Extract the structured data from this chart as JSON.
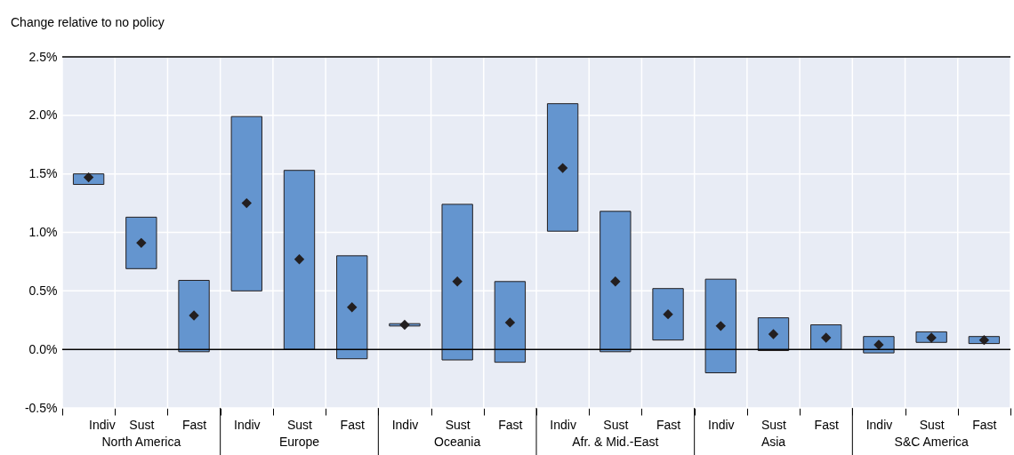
{
  "chart_data": {
    "type": "bar",
    "subtitle": "Change relative to no policy",
    "categories": [
      "Indiv",
      "Sust",
      "Fast",
      "Indiv",
      "Sust",
      "Fast",
      "Indiv",
      "Sust",
      "Fast",
      "Indiv",
      "Sust",
      "Fast",
      "Indiv",
      "Sust",
      "Fast",
      "Indiv",
      "Sust",
      "Fast"
    ],
    "annotations": [
      "North America",
      "Europe",
      "Oceania",
      "Afr. & Mid.-East",
      "Asia",
      "S&C America"
    ],
    "series": [
      {
        "color": "#6495cf",
        "base": [
          1.41,
          0.69,
          -0.02,
          0.5,
          0.0,
          -0.08,
          0.2,
          -0.09,
          -0.11,
          1.01,
          -0.02,
          0.08,
          -0.2,
          -0.01,
          0.0,
          -0.03,
          0.06,
          0.05
        ],
        "values": [
          0.09,
          0.44,
          0.61,
          1.49,
          1.53,
          0.88,
          0.02,
          1.33,
          0.69,
          1.09,
          1.2,
          0.44,
          0.8,
          0.28,
          0.21,
          0.14,
          0.09,
          0.06
        ]
      },
      {
        "type": "scatter",
        "color": "#231f20",
        "marker": "diamond",
        "values": [
          1.47,
          0.91,
          0.29,
          1.25,
          0.77,
          0.36,
          0.21,
          0.58,
          0.23,
          1.55,
          0.58,
          0.3,
          0.2,
          0.13,
          0.1,
          0.04,
          0.1,
          0.08
        ]
      }
    ],
    "ylim": [
      -0.5,
      2.5
    ],
    "yticks": [
      {
        "value": -0.5,
        "label": "-0.5%"
      },
      {
        "value": 0,
        "label": "0.0%"
      },
      {
        "value": 0.5,
        "label": "0.5%"
      },
      {
        "value": 1,
        "label": "1.0%"
      },
      {
        "value": 1.5,
        "label": "1.5%"
      },
      {
        "value": 2,
        "label": "2.0%"
      },
      {
        "value": 2.5,
        "label": "2.5%"
      }
    ],
    "ref_lines": [
      {
        "axis": "y",
        "value": 0,
        "color": "#000000"
      }
    ],
    "grid": true
  }
}
